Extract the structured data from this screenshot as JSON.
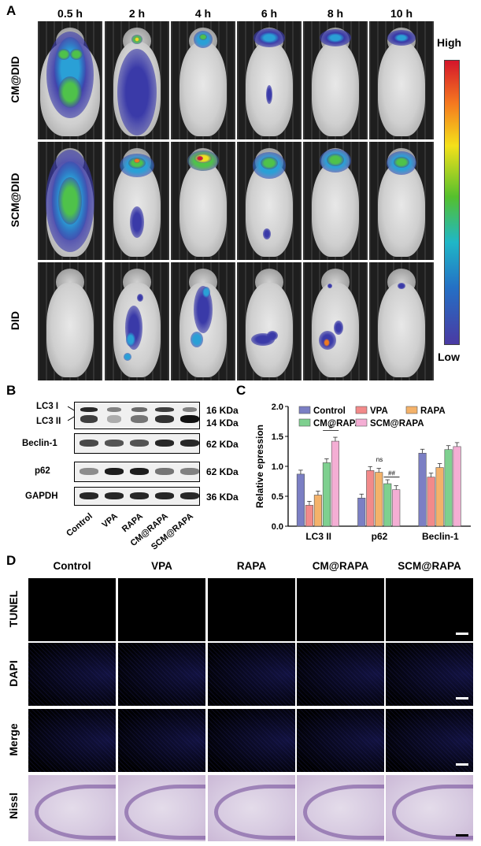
{
  "panelA": {
    "label": "A",
    "timepoints": [
      "0.5 h",
      "2 h",
      "4 h",
      "6 h",
      "8 h",
      "10 h"
    ],
    "groups": [
      "CM@DID",
      "SCM@DID",
      "DID"
    ],
    "colorbar": {
      "high": "High",
      "low": "Low"
    }
  },
  "panelB": {
    "label": "B",
    "rows": [
      {
        "name": "LC3 I",
        "kda": "16 KDa"
      },
      {
        "name": "LC3 II",
        "kda": "14 KDa"
      },
      {
        "name": "Beclin-1",
        "kda": "62 KDa"
      },
      {
        "name": "p62",
        "kda": "62 KDa"
      },
      {
        "name": "GAPDH",
        "kda": "36 KDa"
      }
    ],
    "lanes": [
      "Control",
      "VPA",
      "RAPA",
      "CM@RAPA",
      "SCM@RAPA"
    ]
  },
  "panelC": {
    "label": "C",
    "chart_data": {
      "type": "bar",
      "ylabel": "Relative epression",
      "ylim": [
        0,
        2.0
      ],
      "yticks": [
        "0.0",
        "0.5",
        "1.0",
        "1.5",
        "2.0"
      ],
      "categories": [
        "LC3 II",
        "p62",
        "Beclin-1"
      ],
      "series": [
        {
          "name": "Control",
          "color": "#7b7fc4",
          "values": [
            0.87,
            0.47,
            1.22
          ]
        },
        {
          "name": "VPA",
          "color": "#f28a8a",
          "values": [
            0.35,
            0.93,
            0.82
          ]
        },
        {
          "name": "RAPA",
          "color": "#f4b26a",
          "values": [
            0.52,
            0.9,
            0.98
          ]
        },
        {
          "name": "CM@RAPA",
          "color": "#7ed08f",
          "values": [
            1.06,
            0.71,
            1.28
          ]
        },
        {
          "name": "SCM@RAPA",
          "color": "#f4aed4",
          "values": [
            1.42,
            0.61,
            1.33
          ]
        }
      ],
      "annotations": [
        "#",
        "ns",
        "##"
      ],
      "legend": "top"
    }
  },
  "panelD": {
    "label": "D",
    "columns": [
      "Control",
      "VPA",
      "RAPA",
      "CM@RAPA",
      "SCM@RAPA"
    ],
    "rows": [
      "TUNEL",
      "DAPI",
      "Merge",
      "Nissl"
    ]
  }
}
